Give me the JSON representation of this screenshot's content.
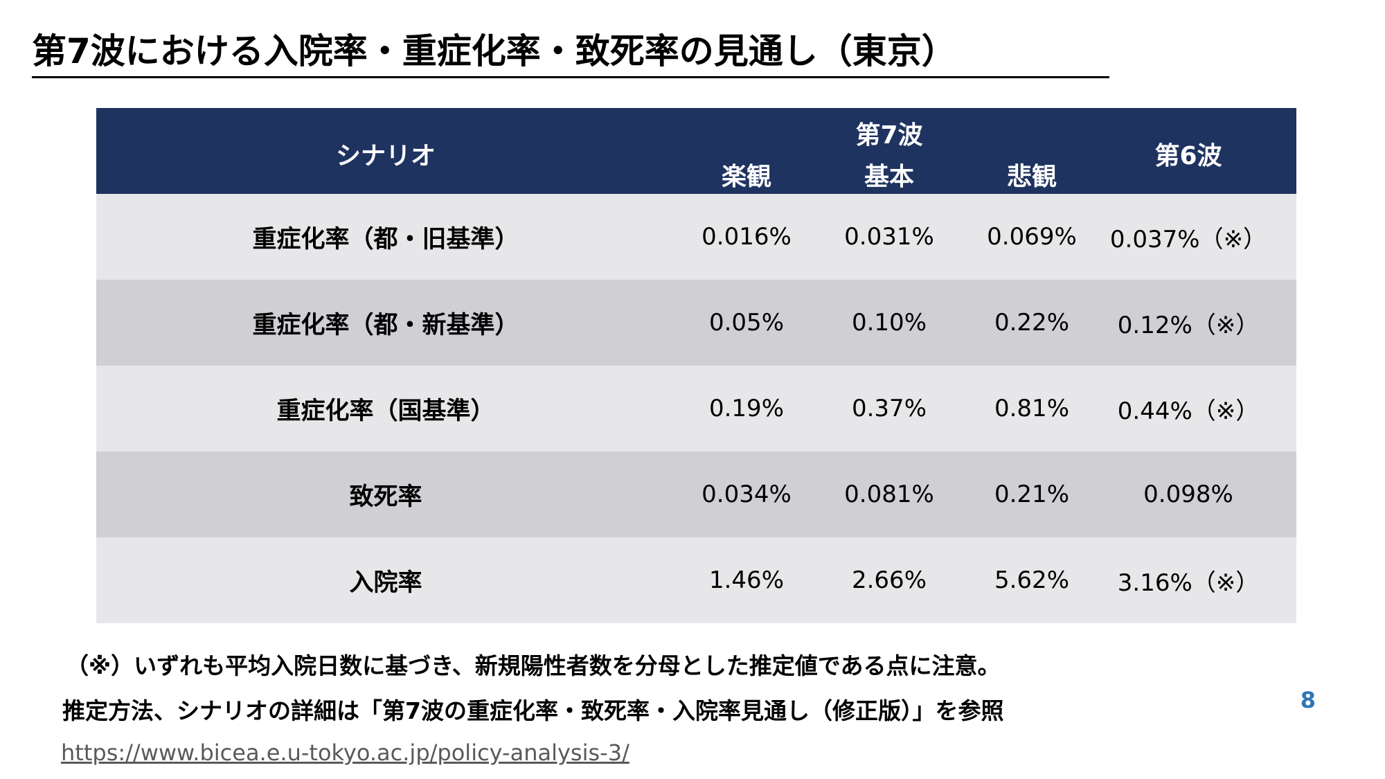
{
  "title": "第7波における入院率・重症化率・致死率の見通し（東京）",
  "table": {
    "header": {
      "scenario": "シナリオ",
      "wave7": "第7波",
      "optimistic": "楽観",
      "base": "基本",
      "pessimistic": "悲観",
      "wave6": "第6波"
    },
    "rows": [
      {
        "label": "重症化率（都・旧基準）",
        "optimistic": "0.016%",
        "base": "0.031%",
        "pessimistic": "0.069%",
        "wave6": "0.037%（※）"
      },
      {
        "label": "重症化率（都・新基準）",
        "optimistic": "0.05%",
        "base": "0.10%",
        "pessimistic": "0.22%",
        "wave6": "0.12%（※）"
      },
      {
        "label": "重症化率（国基準）",
        "optimistic": "0.19%",
        "base": "0.37%",
        "pessimistic": "0.81%",
        "wave6": "0.44%（※）"
      },
      {
        "label": "致死率",
        "optimistic": "0.034%",
        "base": "0.081%",
        "pessimistic": "0.21%",
        "wave6": "0.098%"
      },
      {
        "label": "入院率",
        "optimistic": "1.46%",
        "base": "2.66%",
        "pessimistic": "5.62%",
        "wave6": "3.16%（※）"
      }
    ]
  },
  "notes": {
    "line1": "（※）いずれも平均入院日数に基づき、新規陽性者数を分母とした推定値である点に注意。",
    "line2": "推定方法、シナリオの詳細は「第7波の重症化率・致死率・入院率見通し（修正版）」を参照"
  },
  "page_number": "8",
  "link": "https://www.bicea.e.u-tokyo.ac.jp/policy-analysis-3/"
}
